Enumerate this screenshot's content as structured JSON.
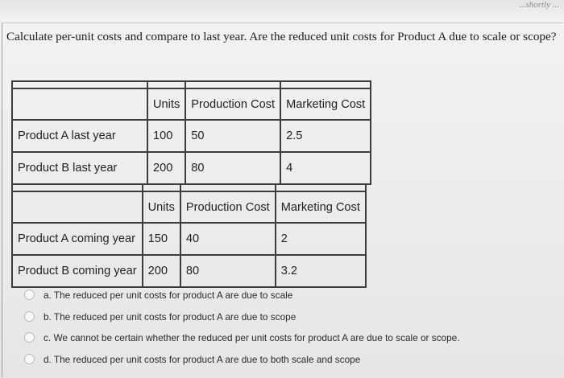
{
  "header": {
    "top_fragment": "...shortly ..."
  },
  "question": {
    "text": "Calculate per-unit costs and compare to last year. Are the reduced unit costs for Product A due to scale or scope?"
  },
  "table_last_year": {
    "headers": [
      "",
      "Units",
      "Production Cost",
      "Marketing Cost"
    ],
    "rows": [
      {
        "label": "Product A last year",
        "units": "100",
        "production": "50",
        "marketing": "2.5"
      },
      {
        "label": "Product B last year",
        "units": "200",
        "production": "80",
        "marketing": "4"
      }
    ]
  },
  "table_coming_year": {
    "headers": [
      "",
      "Units",
      "Production Cost",
      "Marketing Cost"
    ],
    "rows": [
      {
        "label": "Product A coming year",
        "units": "150",
        "production": "40",
        "marketing": "2"
      },
      {
        "label": "Product B coming year",
        "units": "200",
        "production": "80",
        "marketing": "3.2"
      }
    ]
  },
  "options": [
    {
      "text": "a. The reduced per unit costs for product A are due to scale"
    },
    {
      "text": "b. The reduced per unit costs for product A are due to scope"
    },
    {
      "text": "c. We cannot be certain whether the reduced per unit costs for product A are due to scale or scope."
    },
    {
      "text": "d. The reduced per unit costs for product A are due to both scale and scope"
    }
  ]
}
